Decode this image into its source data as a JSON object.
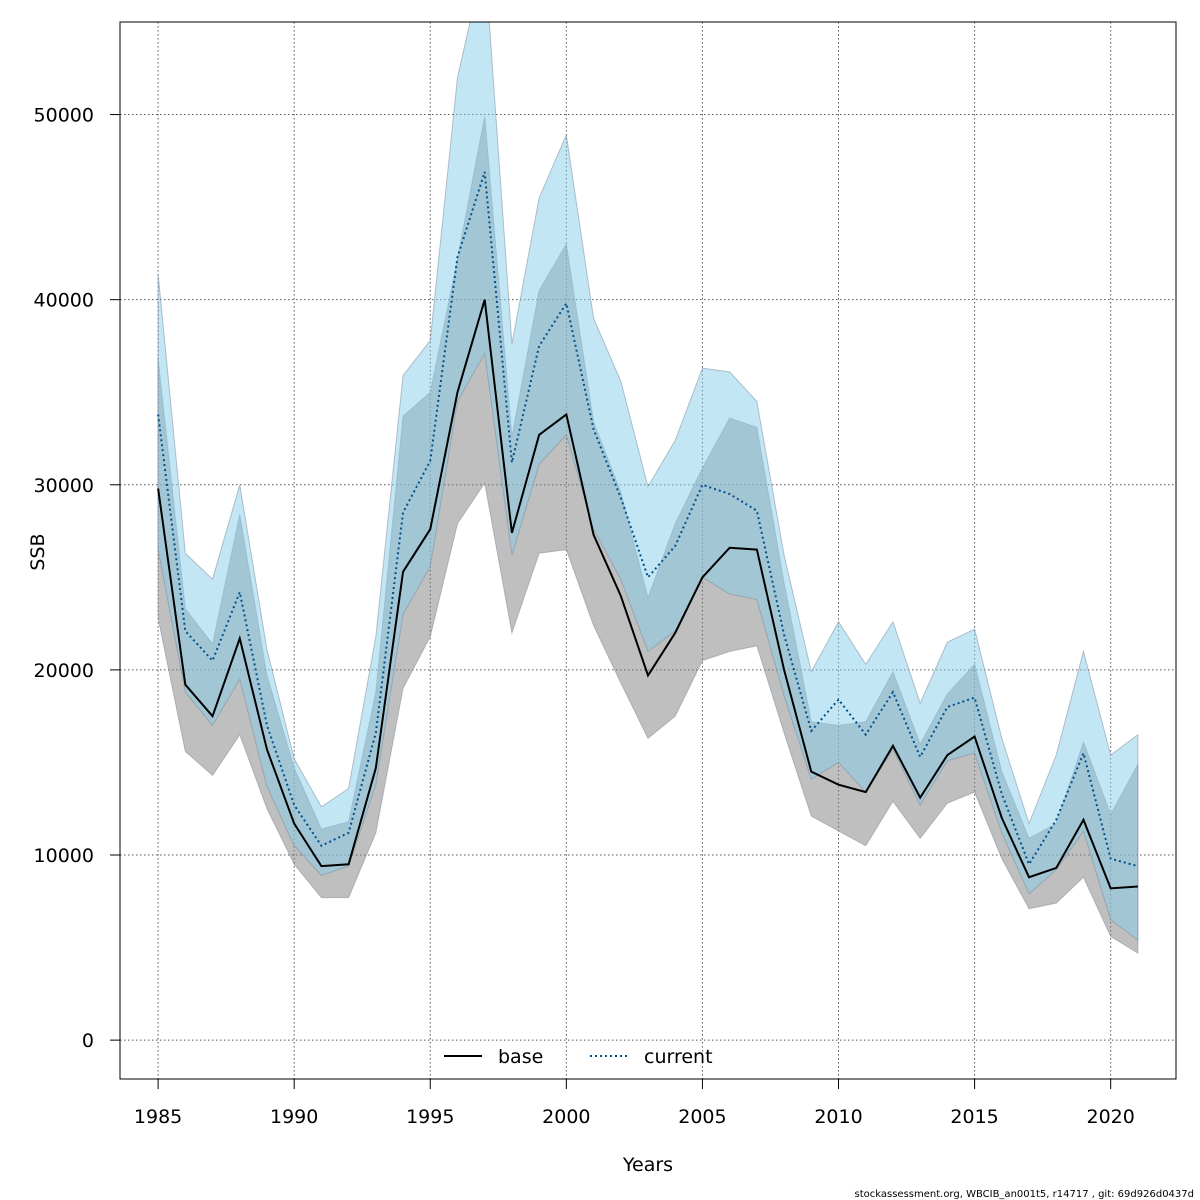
{
  "chart_data": {
    "type": "line",
    "title": "",
    "xlabel": "Years",
    "ylabel": "SSB",
    "xlim": [
      1983.6,
      2022.4
    ],
    "ylim": [
      -2100,
      55000
    ],
    "x_ticks": [
      1985,
      1990,
      1995,
      2000,
      2005,
      2010,
      2015,
      2020
    ],
    "y_ticks": [
      0,
      10000,
      20000,
      30000,
      40000,
      50000
    ],
    "grid": true,
    "legend_position": "bottom",
    "x": [
      1985,
      1986,
      1987,
      1988,
      1989,
      1990,
      1991,
      1992,
      1993,
      1994,
      1995,
      1996,
      1997,
      1998,
      1999,
      2000,
      2001,
      2002,
      2003,
      2004,
      2005,
      2006,
      2007,
      2008,
      2009,
      2010,
      2011,
      2012,
      2013,
      2014,
      2015,
      2016,
      2017,
      2018,
      2019,
      2020,
      2021
    ],
    "series": [
      {
        "name": "base",
        "line_color": "#000000",
        "band_color": "#808080",
        "line_style": "solid",
        "values": [
          29800,
          19200,
          17500,
          21700,
          15700,
          11700,
          9400,
          9500,
          14700,
          25300,
          27600,
          35000,
          40000,
          27400,
          32700,
          33800,
          27300,
          24000,
          19700,
          22000,
          25000,
          26600,
          26500,
          20000,
          14500,
          13800,
          13400,
          15900,
          13100,
          15400,
          16400,
          12000,
          8800,
          9300,
          11900,
          8200,
          8300
        ],
        "lower": [
          22800,
          15600,
          14300,
          16500,
          12500,
          9500,
          7700,
          7700,
          11200,
          19000,
          21800,
          27900,
          30100,
          22000,
          26300,
          26500,
          22400,
          19300,
          16300,
          17500,
          20500,
          21000,
          21300,
          16600,
          12100,
          11300,
          10500,
          12900,
          10900,
          12800,
          13400,
          9800,
          7100,
          7400,
          8800,
          5600,
          4700
        ],
        "upper": [
          36800,
          23300,
          21400,
          28400,
          19700,
          14700,
          11400,
          11800,
          18800,
          33700,
          35000,
          42200,
          49900,
          32600,
          40500,
          43000,
          33400,
          29600,
          23900,
          27900,
          30900,
          33600,
          33100,
          24700,
          17200,
          17000,
          17200,
          19900,
          16000,
          18700,
          20300,
          14500,
          10900,
          11700,
          16100,
          12200,
          14900
        ]
      },
      {
        "name": "current",
        "line_color": "#00508C",
        "band_color": "#87CEEB",
        "line_style": "dotted",
        "values": [
          33800,
          22100,
          20500,
          24200,
          17000,
          12700,
          10500,
          11200,
          16600,
          28500,
          31300,
          42300,
          46900,
          31200,
          37500,
          39800,
          33000,
          29300,
          25000,
          26700,
          30000,
          29500,
          28600,
          21900,
          16700,
          18400,
          16500,
          18800,
          15300,
          18000,
          18500,
          13300,
          9500,
          11900,
          15500,
          9800,
          9400
        ],
        "lower": [
          26500,
          18800,
          17000,
          19500,
          13700,
          10500,
          8900,
          9400,
          13800,
          23000,
          25600,
          34500,
          37100,
          26200,
          31100,
          32700,
          27600,
          24900,
          21000,
          22100,
          25000,
          24100,
          23800,
          18600,
          14100,
          15000,
          13400,
          15700,
          12700,
          15100,
          15500,
          11200,
          7900,
          9200,
          11300,
          6500,
          5400
        ],
        "upper": [
          41400,
          26300,
          24900,
          30000,
          21100,
          15200,
          12600,
          13600,
          21800,
          35900,
          37800,
          52000,
          58500,
          37600,
          45500,
          48900,
          39000,
          35600,
          29900,
          32400,
          36300,
          36100,
          34500,
          26200,
          19900,
          22600,
          20300,
          22600,
          18200,
          21500,
          22200,
          16300,
          11700,
          15400,
          21000,
          15400,
          16500
        ]
      }
    ]
  },
  "footer_text": "stockassessment.org, WBCIB_an001t5, r14717 , git: 69d926d0437d"
}
